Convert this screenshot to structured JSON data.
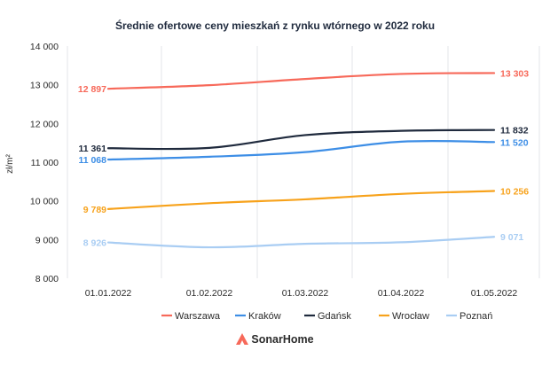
{
  "chart_data": {
    "type": "line",
    "title": "Średnie ofertowe ceny mieszkań z rynku wtórnego w 2022 roku",
    "ylabel": "zł/m²",
    "xlabel": "",
    "categories": [
      "01.01.2022",
      "01.02.2022",
      "01.03.2022",
      "01.04.2022",
      "01.05.2022"
    ],
    "ylim": [
      8000,
      14000
    ],
    "yticks": [
      8000,
      9000,
      10000,
      11000,
      12000,
      13000,
      14000
    ],
    "ytick_labels": [
      "8 000",
      "9 000",
      "10 000",
      "11 000",
      "12 000",
      "13 000",
      "14 000"
    ],
    "grid": "vertical",
    "legend_position": "bottom",
    "series": [
      {
        "name": "Warszawa",
        "color": "#f7695a",
        "values": [
          12897,
          12990,
          13150,
          13280,
          13303
        ],
        "start_label": "12 897",
        "end_label": "13 303"
      },
      {
        "name": "Kraków",
        "color": "#3d8ee6",
        "values": [
          11068,
          11140,
          11260,
          11530,
          11520
        ],
        "start_label": "11 068",
        "end_label": "11 520"
      },
      {
        "name": "Gdańsk",
        "color": "#1f2a3d",
        "values": [
          11361,
          11370,
          11700,
          11810,
          11832
        ],
        "start_label": "11 361",
        "end_label": "11 832"
      },
      {
        "name": "Wrocław",
        "color": "#f7a21b",
        "values": [
          9789,
          9940,
          10040,
          10180,
          10256
        ],
        "start_label": "9 789",
        "end_label": "10 256"
      },
      {
        "name": "Poznań",
        "color": "#a9cdf3",
        "values": [
          8926,
          8800,
          8890,
          8930,
          9071
        ],
        "start_label": "8 926",
        "end_label": "9 071"
      }
    ]
  },
  "brand": {
    "name": "SonarHome",
    "logo_color": "#f7695a"
  }
}
